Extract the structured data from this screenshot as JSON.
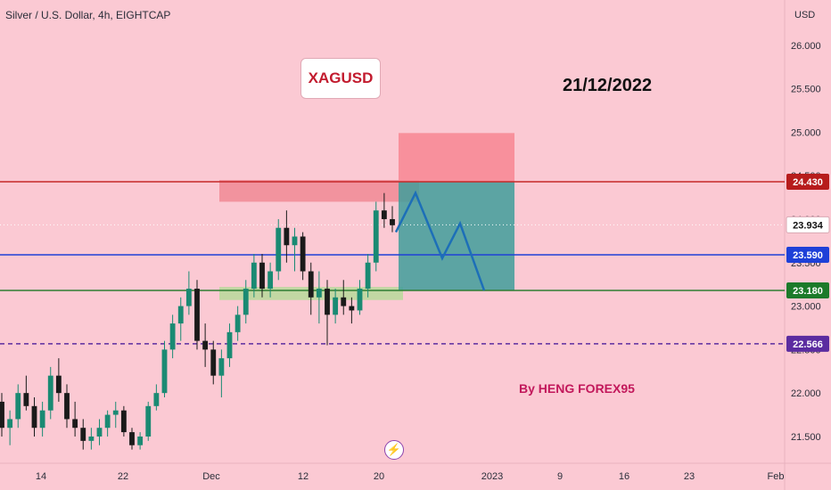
{
  "chart_header": "Silver / U.S. Dollar, 4h, EIGHTCAP",
  "symbol_label": "XAGUSD",
  "date_annotation": "21/12/2022",
  "author_label": "By HENG FOREX95",
  "flash_icon": "lightning-icon",
  "chart_data": {
    "type": "candlestick",
    "title": "Silver / U.S. Dollar, 4h, EIGHTCAP",
    "ylabel": "USD",
    "ylim": [
      21.3,
      26.45
    ],
    "y_ticks": [
      "26.000",
      "25.500",
      "25.000",
      "24.500",
      "24.000",
      "23.500",
      "23.000",
      "22.500",
      "22.000",
      "21.500"
    ],
    "x_ticks": [
      "14",
      "22",
      "Dec",
      "12",
      "20",
      "2023",
      "9",
      "16",
      "23",
      "Feb"
    ],
    "price_markers": [
      {
        "value": "24.430",
        "color": "#b71c1c"
      },
      {
        "value": "23.934",
        "color": "#ffffff"
      },
      {
        "value": "23.590",
        "color": "#1e40d8"
      },
      {
        "value": "23.180",
        "color": "#1b7a2a"
      },
      {
        "value": "22.566",
        "color": "#5b2ca0"
      }
    ],
    "levels": [
      {
        "price": 24.43,
        "color": "#c62828",
        "style": "solid"
      },
      {
        "price": 23.59,
        "color": "#1e40d8",
        "style": "solid"
      },
      {
        "price": 23.18,
        "color": "#2e7d32",
        "style": "solid"
      },
      {
        "price": 22.566,
        "color": "#5b2ca0",
        "style": "dashed"
      }
    ],
    "zones": [
      {
        "label": "resistance",
        "price_top": 24.45,
        "price_bottom": 24.2,
        "color": "#f08a94"
      },
      {
        "label": "support",
        "price_top": 23.22,
        "price_bottom": 23.07,
        "color": "#b7d99a"
      }
    ],
    "short_position": {
      "entry": 24.43,
      "stop": 24.99,
      "target": 23.18
    },
    "forecast_path": [
      23.85,
      24.3,
      23.55,
      23.95,
      23.18
    ],
    "candles_ohlc": [
      [
        21.9,
        22.0,
        21.5,
        21.6
      ],
      [
        21.6,
        21.8,
        21.4,
        21.7
      ],
      [
        21.7,
        22.1,
        21.6,
        22.0
      ],
      [
        22.0,
        22.2,
        21.8,
        21.85
      ],
      [
        21.85,
        21.95,
        21.5,
        21.6
      ],
      [
        21.6,
        21.9,
        21.5,
        21.8
      ],
      [
        21.8,
        22.3,
        21.7,
        22.2
      ],
      [
        22.2,
        22.4,
        21.9,
        22.0
      ],
      [
        22.0,
        22.1,
        21.6,
        21.7
      ],
      [
        21.7,
        21.9,
        21.5,
        21.6
      ],
      [
        21.6,
        21.7,
        21.35,
        21.45
      ],
      [
        21.45,
        21.6,
        21.35,
        21.5
      ],
      [
        21.5,
        21.7,
        21.4,
        21.6
      ],
      [
        21.6,
        21.8,
        21.5,
        21.75
      ],
      [
        21.75,
        21.9,
        21.6,
        21.8
      ],
      [
        21.8,
        21.85,
        21.5,
        21.55
      ],
      [
        21.55,
        21.6,
        21.35,
        21.4
      ],
      [
        21.4,
        21.55,
        21.35,
        21.5
      ],
      [
        21.5,
        21.9,
        21.45,
        21.85
      ],
      [
        21.85,
        22.1,
        21.8,
        22.0
      ],
      [
        22.0,
        22.6,
        21.95,
        22.5
      ],
      [
        22.5,
        22.9,
        22.4,
        22.8
      ],
      [
        22.8,
        23.1,
        22.6,
        23.0
      ],
      [
        23.0,
        23.4,
        22.9,
        23.2
      ],
      [
        23.2,
        23.3,
        22.5,
        22.6
      ],
      [
        22.6,
        22.8,
        22.3,
        22.5
      ],
      [
        22.5,
        22.6,
        22.1,
        22.2
      ],
      [
        22.2,
        22.5,
        21.95,
        22.4
      ],
      [
        22.4,
        22.8,
        22.3,
        22.7
      ],
      [
        22.7,
        23.0,
        22.6,
        22.9
      ],
      [
        22.9,
        23.3,
        22.8,
        23.2
      ],
      [
        23.2,
        23.6,
        23.1,
        23.5
      ],
      [
        23.5,
        23.6,
        23.1,
        23.2
      ],
      [
        23.2,
        23.5,
        23.1,
        23.4
      ],
      [
        23.4,
        24.0,
        23.3,
        23.9
      ],
      [
        23.9,
        24.1,
        23.5,
        23.7
      ],
      [
        23.7,
        23.9,
        23.4,
        23.8
      ],
      [
        23.8,
        23.85,
        23.3,
        23.4
      ],
      [
        23.4,
        23.5,
        22.9,
        23.1
      ],
      [
        23.1,
        23.4,
        22.8,
        23.2
      ],
      [
        23.2,
        23.3,
        22.55,
        22.9
      ],
      [
        22.9,
        23.2,
        22.8,
        23.1
      ],
      [
        23.1,
        23.3,
        22.9,
        23.0
      ],
      [
        23.0,
        23.1,
        22.8,
        22.95
      ],
      [
        22.95,
        23.3,
        22.9,
        23.2
      ],
      [
        23.2,
        23.6,
        23.1,
        23.5
      ],
      [
        23.5,
        24.2,
        23.4,
        24.1
      ],
      [
        24.1,
        24.3,
        23.9,
        24.0
      ],
      [
        24.0,
        24.15,
        23.85,
        23.93
      ]
    ]
  }
}
